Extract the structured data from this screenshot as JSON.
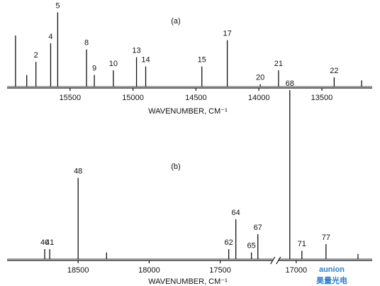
{
  "chart_data": [
    {
      "type": "spectrum",
      "panel_label": "(a)",
      "x_label": "WAVENUMBER, CM⁻¹",
      "x_segments": [
        {
          "xlim": [
            16000,
            13100
          ],
          "xticks": [
            15500,
            15000,
            14500,
            14000,
            13500
          ]
        }
      ],
      "ylim": [
        0,
        100
      ],
      "x": [
        15933,
        15844,
        15771,
        15654,
        15598,
        15369,
        15307,
        15156,
        14972,
        14899,
        14453,
        14251,
        13989,
        13844,
        13402,
        13184
      ],
      "values": [
        66,
        15,
        32,
        56,
        96,
        48,
        15,
        21,
        38,
        26,
        26,
        60,
        3,
        21,
        12,
        8
      ],
      "peak_labels": [
        null,
        null,
        "2",
        "4",
        "5",
        "8",
        "9",
        "10",
        "13",
        "14",
        "15",
        "17",
        "20",
        "21",
        "22",
        null
      ],
      "color": "#111111"
    },
    {
      "type": "spectrum",
      "panel_label": "(b)",
      "x_label": "WAVENUMBER, CM⁻¹",
      "x_segments": [
        {
          "xlim": [
            19000,
            17130
          ],
          "xticks": [
            18500,
            18000,
            17500
          ]
        },
        {
          "xlim": [
            17125,
            16465
          ],
          "xticks": [
            17000
          ]
        }
      ],
      "ylim": [
        0,
        105
      ],
      "x": [
        18735,
        18700,
        18500,
        18300,
        17440,
        17390,
        17280,
        17235,
        17045,
        16960,
        16790,
        16565
      ],
      "values": [
        6,
        6,
        49,
        4,
        6,
        24,
        4,
        15,
        102,
        5,
        9,
        3
      ],
      "peak_labels": [
        "40",
        "41",
        "48",
        null,
        "62",
        "64",
        "65",
        "67",
        "68",
        "71",
        "77",
        null
      ],
      "color": "#111111"
    }
  ],
  "watermark": {
    "brand": "aunion",
    "subtitle": "昊量光电"
  }
}
